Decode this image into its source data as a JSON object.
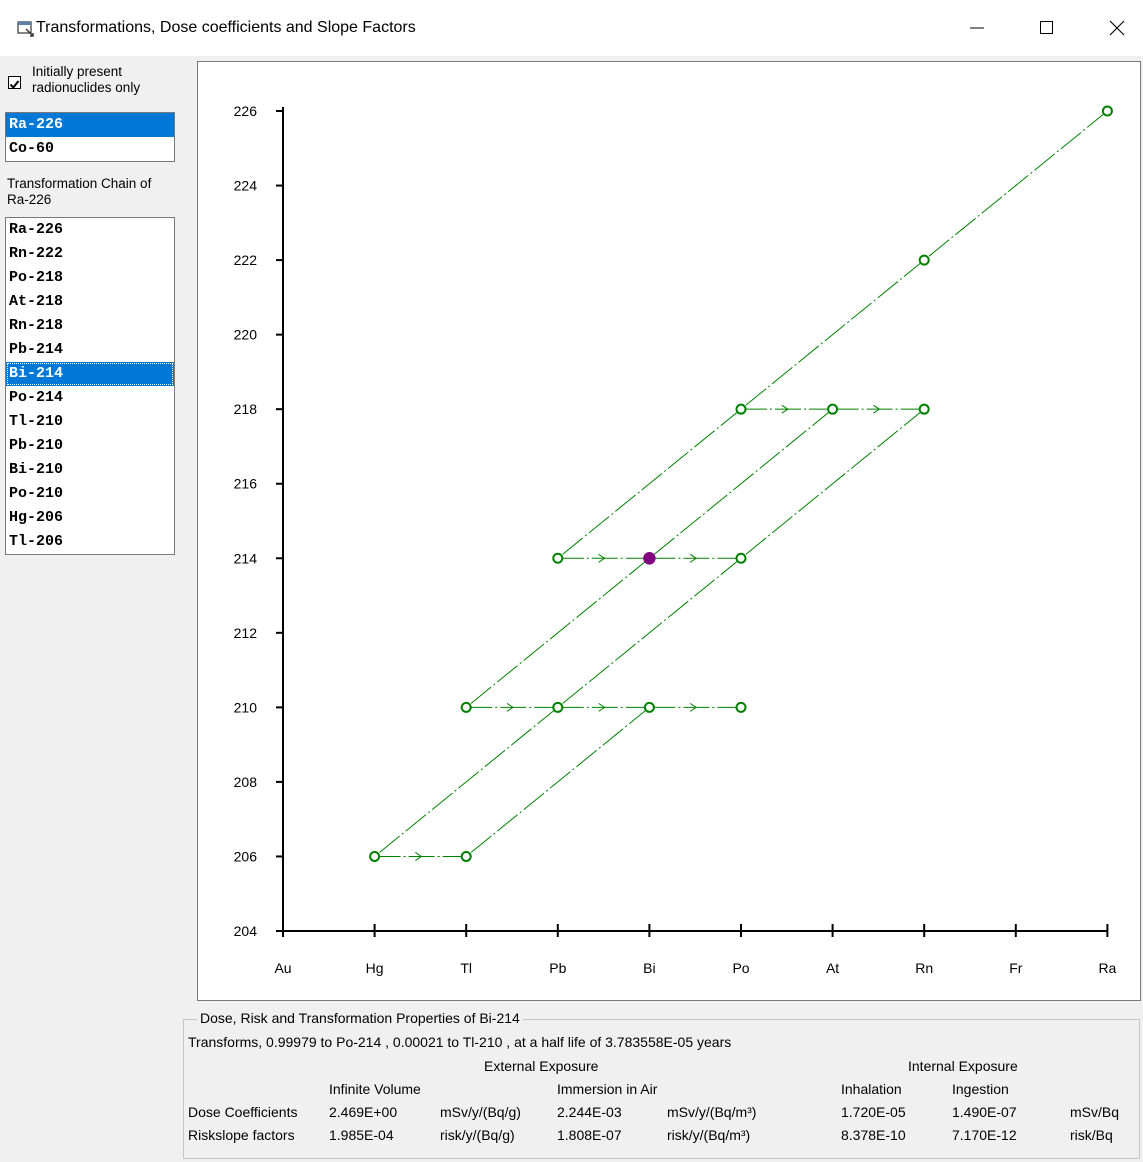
{
  "window": {
    "title": "Transformations, Dose coefficients and Slope Factors",
    "icons": {
      "app": "app-window-icon",
      "minimize": "minimize-icon",
      "maximize": "maximize-icon",
      "close": "close-icon"
    }
  },
  "sidebar": {
    "checkbox_label_line1": "Initially present",
    "checkbox_label_line2": "radionuclides only",
    "checkbox_checked": true,
    "initial_nuclides": [
      "Ra-226",
      "Co-60"
    ],
    "initial_selected": "Ra-226",
    "chain_label_line1": "Transformation Chain of",
    "chain_label_line2": "Ra-226",
    "chain": [
      "Ra-226",
      "Rn-222",
      "Po-218",
      "At-218",
      "Rn-218",
      "Pb-214",
      "Bi-214",
      "Po-214",
      "Tl-210",
      "Pb-210",
      "Bi-210",
      "Po-210",
      "Hg-206",
      "Tl-206"
    ],
    "chain_selected": "Bi-214"
  },
  "chart_data": {
    "type": "scatter",
    "x_categories": [
      "Au",
      "Hg",
      "Tl",
      "Pb",
      "Bi",
      "Po",
      "At",
      "Rn",
      "Fr",
      "Ra"
    ],
    "ylim": [
      204,
      226
    ],
    "y_ticks": [
      204,
      206,
      208,
      210,
      212,
      214,
      216,
      218,
      220,
      222,
      224,
      226
    ],
    "nodes": [
      {
        "nuclide": "Ra-226",
        "element": "Ra",
        "mass": 226
      },
      {
        "nuclide": "Rn-222",
        "element": "Rn",
        "mass": 222
      },
      {
        "nuclide": "Po-218",
        "element": "Po",
        "mass": 218
      },
      {
        "nuclide": "At-218",
        "element": "At",
        "mass": 218
      },
      {
        "nuclide": "Rn-218",
        "element": "Rn",
        "mass": 218
      },
      {
        "nuclide": "Pb-214",
        "element": "Pb",
        "mass": 214
      },
      {
        "nuclide": "Bi-214",
        "element": "Bi",
        "mass": 214,
        "selected": true
      },
      {
        "nuclide": "Po-214",
        "element": "Po",
        "mass": 214
      },
      {
        "nuclide": "Tl-210",
        "element": "Tl",
        "mass": 210
      },
      {
        "nuclide": "Pb-210",
        "element": "Pb",
        "mass": 210
      },
      {
        "nuclide": "Bi-210",
        "element": "Bi",
        "mass": 210
      },
      {
        "nuclide": "Po-210",
        "element": "Po",
        "mass": 210
      },
      {
        "nuclide": "Hg-206",
        "element": "Hg",
        "mass": 206
      },
      {
        "nuclide": "Tl-206",
        "element": "Tl",
        "mass": 206
      }
    ],
    "alpha_links": [
      [
        "Ra-226",
        "Rn-222"
      ],
      [
        "Rn-222",
        "Po-218"
      ],
      [
        "Po-218",
        "Pb-214"
      ],
      [
        "At-218",
        "Bi-214"
      ],
      [
        "Rn-218",
        "Po-214"
      ],
      [
        "Bi-214",
        "Tl-210"
      ],
      [
        "Po-214",
        "Pb-210"
      ],
      [
        "Pb-210",
        "Hg-206"
      ],
      [
        "Bi-210",
        "Tl-206"
      ]
    ],
    "beta_links": [
      [
        "Po-218",
        "At-218"
      ],
      [
        "At-218",
        "Rn-218"
      ],
      [
        "Pb-214",
        "Bi-214"
      ],
      [
        "Bi-214",
        "Po-214"
      ],
      [
        "Tl-210",
        "Pb-210"
      ],
      [
        "Pb-210",
        "Bi-210"
      ],
      [
        "Bi-210",
        "Po-210"
      ],
      [
        "Hg-206",
        "Tl-206"
      ]
    ],
    "colors": {
      "node": "#008000",
      "link": "#008000",
      "selected_node": "#800080",
      "axis": "#000000"
    }
  },
  "properties": {
    "group_title": "Dose, Risk and Transformation Properties of Bi-214",
    "transform_text": "Transforms, 0.99979 to Po-214 , 0.00021 to Tl-210 , at a half life of 3.783558E-05 years",
    "external_header": "External Exposure",
    "internal_header": "Internal Exposure",
    "col_infinite": "Infinite Volume",
    "col_immersion": "Immersion in Air",
    "col_inhalation": "Inhalation",
    "col_ingestion": "Ingestion",
    "dose_row": {
      "label": "Dose Coefficients",
      "infinite": "2.469E+00",
      "infinite_unit": "mSv/y/(Bq/g)",
      "immersion": "2.244E-03",
      "immersion_unit": "mSv/y/(Bq/m³)",
      "inhalation": "1.720E-05",
      "ingestion": "1.490E-07",
      "internal_unit": "mSv/Bq"
    },
    "risk_row": {
      "label": "Riskslope factors",
      "infinite": "1.985E-04",
      "infinite_unit": "risk/y/(Bq/g)",
      "immersion": "1.808E-07",
      "immersion_unit": "risk/y/(Bq/m³)",
      "inhalation": "8.378E-10",
      "ingestion": "7.170E-12",
      "internal_unit": "risk/Bq"
    }
  }
}
